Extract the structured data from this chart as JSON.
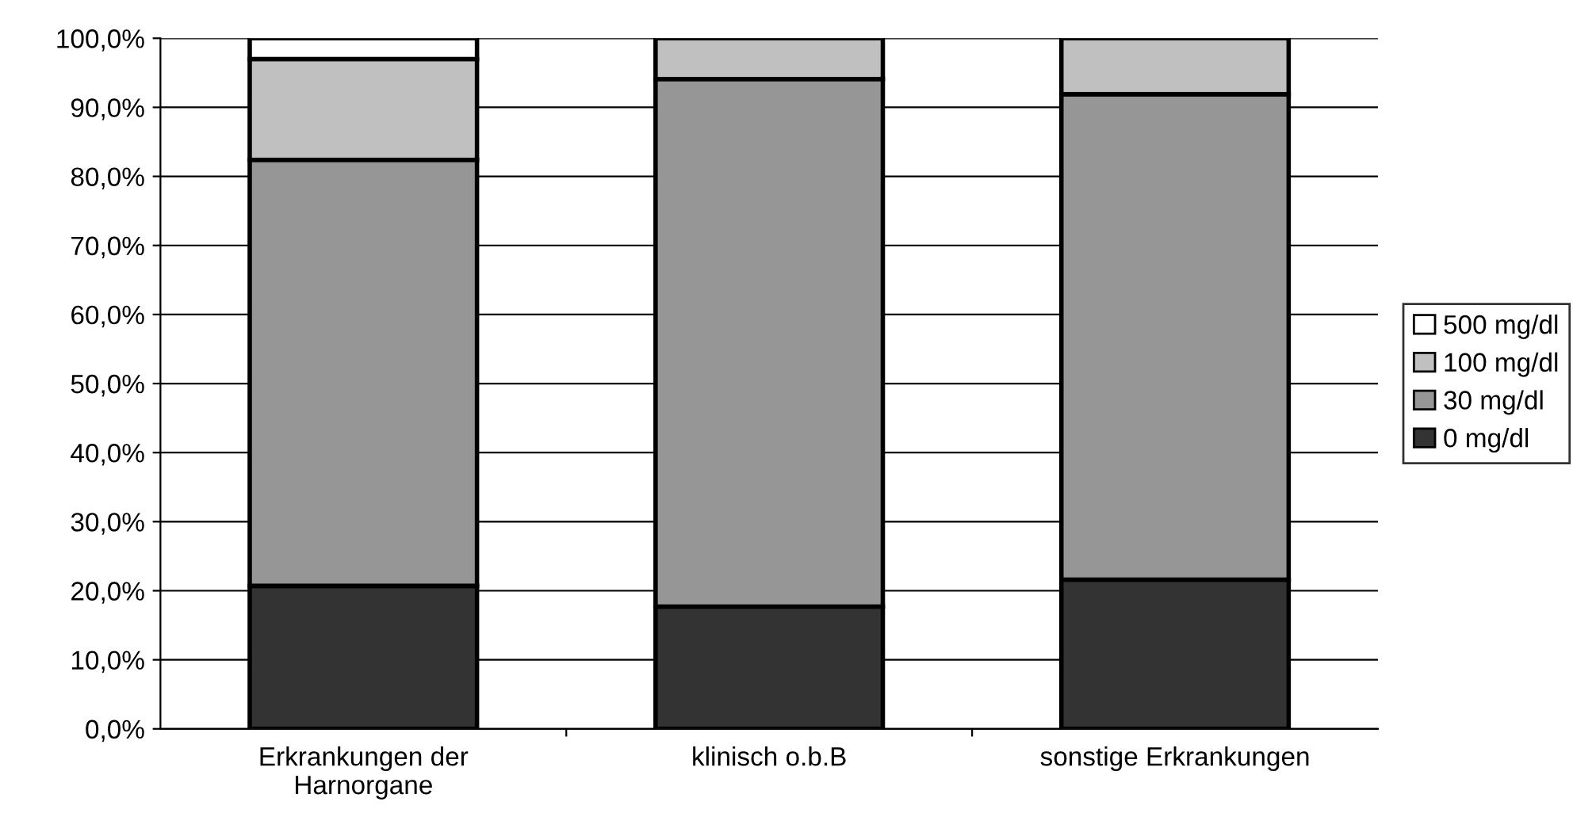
{
  "chart_data": {
    "type": "bar",
    "stacked": true,
    "categories": [
      "Erkrankungen der\nHarnorgane",
      "klinisch o.b.B",
      "sonstige Erkrankungen"
    ],
    "series": [
      {
        "name": "0 mg/dl",
        "color": "#333333",
        "values": [
          20.7,
          17.7,
          21.6
        ]
      },
      {
        "name": "30 mg/dl",
        "color": "#969696",
        "values": [
          61.7,
          76.4,
          70.3
        ]
      },
      {
        "name": "100 mg/dl",
        "color": "#c0c0c0",
        "values": [
          14.6,
          5.9,
          8.1
        ]
      },
      {
        "name": "500 mg/dl",
        "color": "#ffffff",
        "values": [
          3.0,
          null,
          null
        ]
      }
    ],
    "ylim": [
      0,
      100
    ],
    "yticks": [
      {
        "value": 0,
        "label": "0,0%"
      },
      {
        "value": 10,
        "label": "10,0%"
      },
      {
        "value": 20,
        "label": "20,0%"
      },
      {
        "value": 30,
        "label": "30,0%"
      },
      {
        "value": 40,
        "label": "40,0%"
      },
      {
        "value": 50,
        "label": "50,0%"
      },
      {
        "value": 60,
        "label": "60,0%"
      },
      {
        "value": 70,
        "label": "70,0%"
      },
      {
        "value": 80,
        "label": "80,0%"
      },
      {
        "value": 90,
        "label": "90,0%"
      },
      {
        "value": 100,
        "label": "100,0%"
      }
    ],
    "grid": "y",
    "legend": "right"
  }
}
